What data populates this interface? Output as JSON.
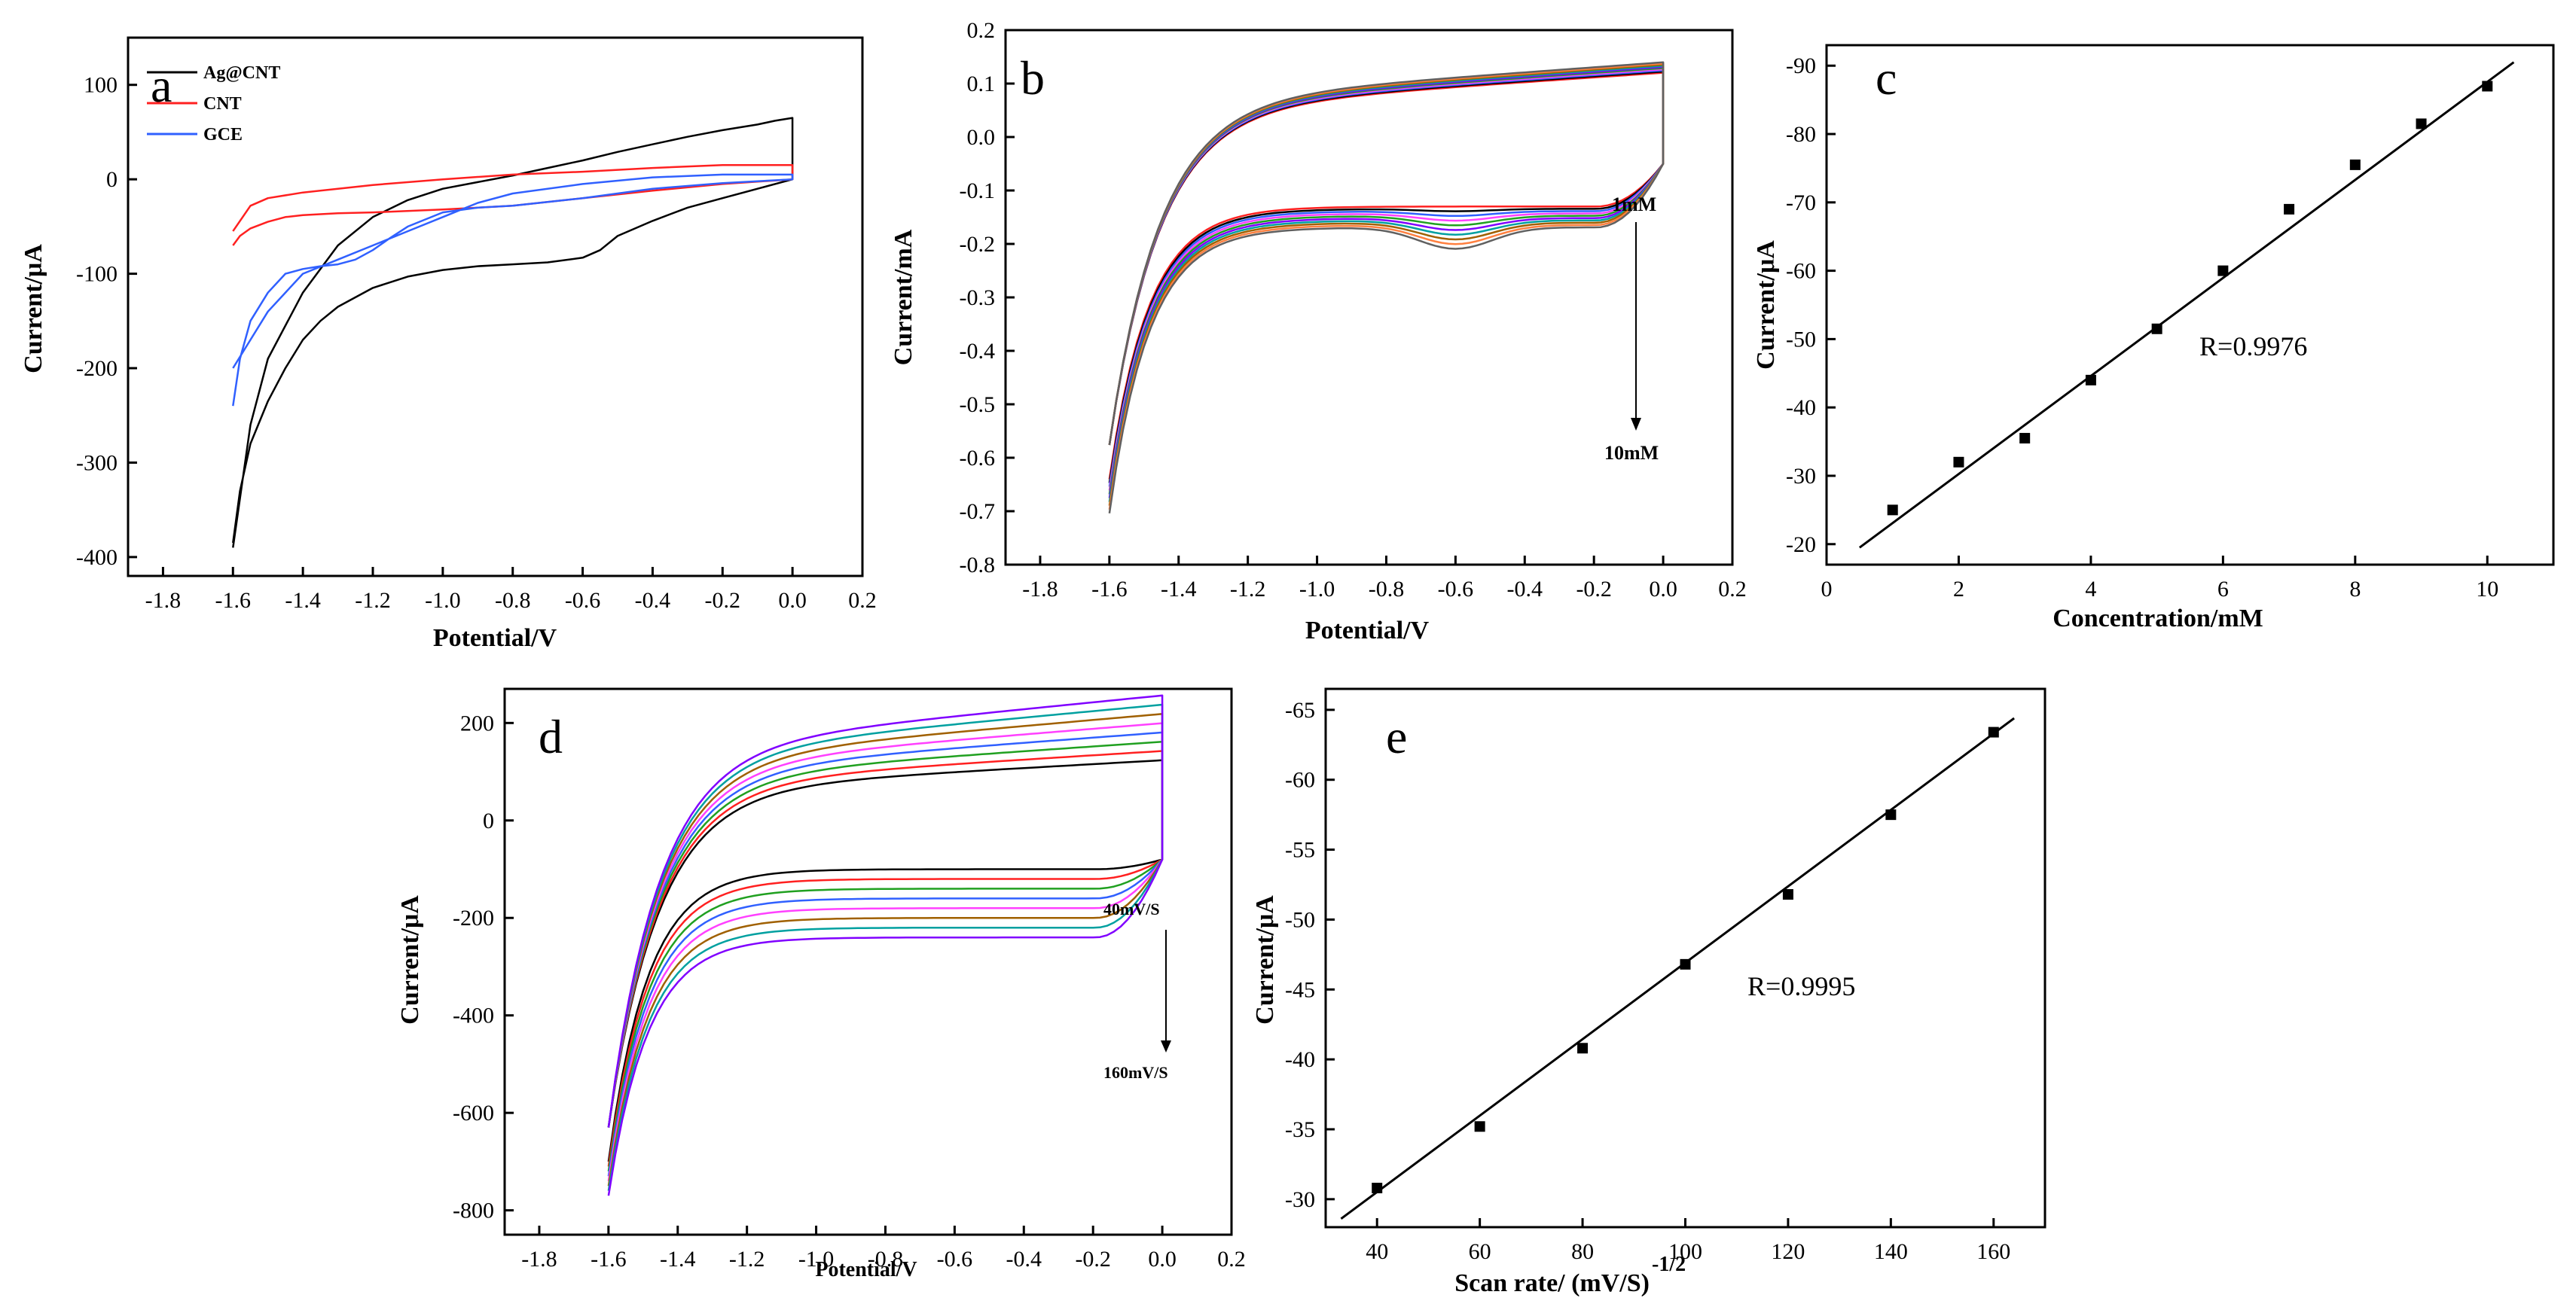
{
  "chart_data": [
    {
      "panel": "a",
      "type": "line",
      "xlabel": "Potential/V",
      "ylabel": "Current/μA",
      "xlim": [
        -1.9,
        0.2
      ],
      "ylim": [
        -420,
        150
      ],
      "x_ticks": [
        -1.8,
        -1.6,
        -1.4,
        -1.2,
        -1.0,
        -0.8,
        -0.6,
        -0.4,
        -0.2,
        0.0,
        0.2
      ],
      "x_tick_labels": [
        "-1.8",
        "-1.6",
        "-1.4",
        "-1.2",
        "-1.0",
        "-0.8",
        "-0.6",
        "-0.4",
        "-0.2",
        "0.0",
        "0.2"
      ],
      "y_ticks": [
        100,
        0,
        -100,
        -200,
        -300,
        -400
      ],
      "y_tick_labels": [
        "100",
        "0",
        "-100",
        "-200",
        "-300",
        "-400"
      ],
      "legend": [
        "Ag@CNT",
        "CNT",
        "GCE"
      ],
      "legend_position": "top-left",
      "series": [
        {
          "name": "Ag@CNT",
          "color": "#000000",
          "x": [
            -1.6,
            -1.58,
            -1.55,
            -1.5,
            -1.45,
            -1.4,
            -1.35,
            -1.3,
            -1.2,
            -1.1,
            -1.0,
            -0.9,
            -0.8,
            -0.7,
            -0.6,
            -0.55,
            -0.5,
            -0.4,
            -0.3,
            -0.2,
            -0.1,
            0.0,
            0.0,
            -0.05,
            -0.1,
            -0.2,
            -0.3,
            -0.4,
            -0.5,
            -0.6,
            -0.7,
            -0.8,
            -0.9,
            -1.0,
            -1.1,
            -1.2,
            -1.3,
            -1.4,
            -1.5,
            -1.55,
            -1.6
          ],
          "y": [
            -385,
            -330,
            -280,
            -235,
            -200,
            -170,
            -150,
            -135,
            -115,
            -103,
            -96,
            -92,
            -90,
            -88,
            -83,
            -75,
            -60,
            -44,
            -30,
            -20,
            -10,
            0,
            65,
            62,
            58,
            52,
            45,
            37,
            29,
            20,
            12,
            4,
            -3,
            -10,
            -22,
            -40,
            -70,
            -120,
            -190,
            -260,
            -390
          ]
        },
        {
          "name": "CNT",
          "color": "#ff2020",
          "x": [
            -1.6,
            -1.58,
            -1.55,
            -1.5,
            -1.45,
            -1.4,
            -1.3,
            -1.2,
            -1.0,
            -0.8,
            -0.6,
            -0.4,
            -0.2,
            0.0,
            0.0,
            -0.2,
            -0.4,
            -0.6,
            -0.8,
            -1.0,
            -1.2,
            -1.3,
            -1.4,
            -1.5,
            -1.55,
            -1.6
          ],
          "y": [
            -70,
            -60,
            -52,
            -45,
            -40,
            -38,
            -36,
            -35,
            -32,
            -28,
            -20,
            -12,
            -5,
            0,
            15,
            15,
            12,
            8,
            5,
            0,
            -6,
            -10,
            -14,
            -20,
            -28,
            -55
          ]
        },
        {
          "name": "GCE",
          "color": "#3060ff",
          "x": [
            -1.6,
            -1.58,
            -1.55,
            -1.5,
            -1.45,
            -1.4,
            -1.35,
            -1.3,
            -1.25,
            -1.2,
            -1.15,
            -1.1,
            -1.0,
            -0.9,
            -0.8,
            -0.6,
            -0.4,
            -0.2,
            0.0,
            0.0,
            -0.2,
            -0.4,
            -0.6,
            -0.8,
            -0.9,
            -1.0,
            -1.1,
            -1.2,
            -1.3,
            -1.4,
            -1.5,
            -1.55,
            -1.6
          ],
          "y": [
            -240,
            -190,
            -150,
            -120,
            -100,
            -95,
            -92,
            -90,
            -85,
            -75,
            -62,
            -50,
            -35,
            -30,
            -28,
            -20,
            -10,
            -4,
            0,
            5,
            5,
            2,
            -5,
            -15,
            -25,
            -40,
            -55,
            -70,
            -85,
            -100,
            -140,
            -170,
            -200
          ]
        }
      ]
    },
    {
      "panel": "b",
      "type": "line",
      "xlabel": "Potential/V",
      "ylabel": "Current/mA",
      "xlim": [
        -1.9,
        0.2
      ],
      "ylim": [
        -0.8,
        0.2
      ],
      "x_ticks": [
        -1.8,
        -1.6,
        -1.4,
        -1.2,
        -1.0,
        -0.8,
        -0.6,
        -0.4,
        -0.2,
        0.0,
        0.2
      ],
      "x_tick_labels": [
        "-1.8",
        "-1.6",
        "-1.4",
        "-1.2",
        "-1.0",
        "-0.8",
        "-0.6",
        "-0.4",
        "-0.2",
        "0.0",
        "0.2"
      ],
      "y_ticks": [
        0.2,
        0.1,
        0.0,
        -0.1,
        -0.2,
        -0.3,
        -0.4,
        -0.5,
        -0.6,
        -0.7,
        -0.8
      ],
      "y_tick_labels": [
        "0.2",
        "0.1",
        "0.0",
        "-0.1",
        "-0.2",
        "-0.3",
        "-0.4",
        "-0.5",
        "-0.6",
        "-0.7",
        "-0.8"
      ],
      "annotations": [
        "1mM",
        "10mM"
      ],
      "curve_colors": [
        "#ff2020",
        "#000000",
        "#3060ff",
        "#ff40ff",
        "#20a020",
        "#8000ff",
        "#00a0a0",
        "#a06000",
        "#ff8040",
        "#606060"
      ],
      "cv_family": {
        "x_start": -1.6,
        "x_end": 0.0,
        "bottom_y_start": -0.64,
        "bottom_y_end": -0.05,
        "plateau_y": -0.13,
        "top_y_end": 0.13,
        "top_plateau": 0.05,
        "peak_x": -0.6,
        "peak_depth": 0.04
      }
    },
    {
      "panel": "c",
      "type": "scatter",
      "xlabel": "Concentration/mM",
      "ylabel": "Current/μA",
      "xlim": [
        0,
        11
      ],
      "ylim": [
        -17,
        -93
      ],
      "x_ticks": [
        0,
        2,
        4,
        6,
        8,
        10
      ],
      "x_tick_labels": [
        "0",
        "2",
        "4",
        "6",
        "8",
        "10"
      ],
      "y_ticks": [
        -20,
        -30,
        -40,
        -50,
        -60,
        -70,
        -80,
        -90
      ],
      "y_tick_labels": [
        "-20",
        "-30",
        "-40",
        "-50",
        "-60",
        "-70",
        "-80",
        "-90"
      ],
      "annotation": "R=0.9976",
      "points": {
        "x": [
          1,
          2,
          3,
          4,
          5,
          6,
          7,
          8,
          9,
          10
        ],
        "y": [
          -25,
          -32,
          -35.5,
          -44,
          -51.5,
          -60,
          -69,
          -75.5,
          -81.5,
          -87
        ]
      },
      "fit": {
        "x": [
          0.5,
          10.4
        ],
        "y": [
          -19.5,
          -90.5
        ]
      }
    },
    {
      "panel": "d",
      "type": "line",
      "xlabel": "Potential/V",
      "ylabel": "Current/μA",
      "xlim": [
        -1.9,
        0.2
      ],
      "ylim": [
        -850,
        270
      ],
      "x_ticks": [
        -1.8,
        -1.6,
        -1.4,
        -1.2,
        -1.0,
        -0.8,
        -0.6,
        -0.4,
        -0.2,
        0.0,
        0.2
      ],
      "x_tick_labels": [
        "-1.8",
        "-1.6",
        "-1.4",
        "-1.2",
        "-1.0",
        "-0.8",
        "-0.6",
        "-0.4",
        "-0.2",
        "0.0",
        "0.2"
      ],
      "y_ticks": [
        200,
        0,
        -200,
        -400,
        -600,
        -800
      ],
      "y_tick_labels": [
        "200",
        "0",
        "-200",
        "-400",
        "-600",
        "-800"
      ],
      "annotations": [
        "40mV/S",
        "160mV/S"
      ],
      "curve_colors": [
        "#000000",
        "#ff2020",
        "#20a020",
        "#3060ff",
        "#ff40ff",
        "#a06000",
        "#00a0a0",
        "#8000ff"
      ],
      "cv_family": {
        "x_start": -1.6,
        "x_end": 0.0,
        "bottom_y_start": -700,
        "bottom_y_end": -80,
        "plateau_y": -100,
        "top_y_end": 190,
        "top_plateau": 60,
        "peak_x": -0.6,
        "peak_depth": 0
      }
    },
    {
      "panel": "e",
      "type": "scatter",
      "xlabel": "Scan rate/ (mV/S)",
      "xlabel_superscript": "-1/2",
      "ylabel": "Current/μA",
      "xlim": [
        30,
        170
      ],
      "ylim": [
        -28,
        -66.5
      ],
      "x_ticks": [
        40,
        60,
        80,
        100,
        120,
        140,
        160
      ],
      "x_tick_labels": [
        "40",
        "60",
        "80",
        "100",
        "120",
        "140",
        "160"
      ],
      "y_ticks": [
        -30,
        -35,
        -40,
        -45,
        -50,
        -55,
        -60,
        -65
      ],
      "y_tick_labels": [
        "-30",
        "-35",
        "-40",
        "-45",
        "-50",
        "-55",
        "-60",
        "-65"
      ],
      "annotation": "R=0.9995",
      "points": {
        "x": [
          40,
          60,
          80,
          100,
          120,
          140,
          160
        ],
        "y": [
          -30.8,
          -35.2,
          -40.8,
          -46.8,
          -51.8,
          -57.5,
          -63.4
        ]
      },
      "fit": {
        "x": [
          33,
          164
        ],
        "y": [
          -28.6,
          -64.4
        ]
      }
    }
  ]
}
